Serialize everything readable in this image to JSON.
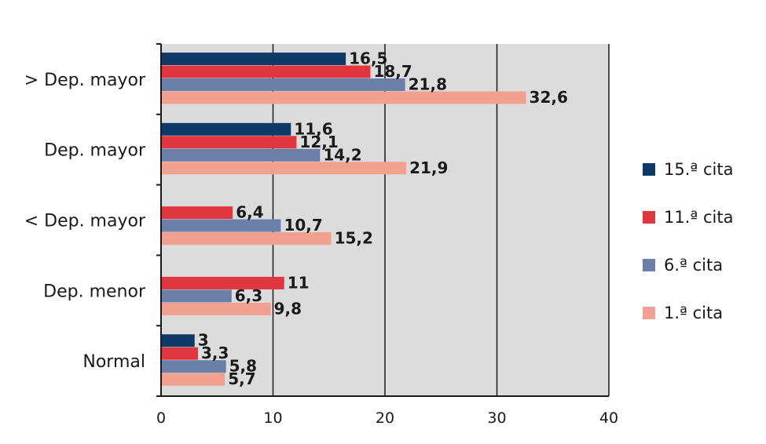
{
  "chart_data": {
    "type": "bar",
    "orientation": "horizontal",
    "categories": [
      "> Dep. mayor",
      "Dep. mayor",
      "< Dep. mayor",
      "Dep. menor",
      "Normal"
    ],
    "series": [
      {
        "name": "15.ª cita",
        "color": "#0d3a66",
        "values": [
          16.5,
          11.6,
          null,
          null,
          3
        ],
        "labels": [
          "16,5",
          "11,6",
          "",
          "",
          "3"
        ]
      },
      {
        "name": "11.ª cita",
        "color": "#e0363f",
        "values": [
          18.7,
          12.1,
          6.4,
          11,
          3.3
        ],
        "labels": [
          "18,7",
          "12,1",
          "6,4",
          "11",
          "3,3"
        ]
      },
      {
        "name": "6.ª cita",
        "color": "#6b7fa8",
        "values": [
          21.8,
          14.2,
          10.7,
          6.3,
          5.8
        ],
        "labels": [
          "21,8",
          "14,2",
          "10,7",
          "6,3",
          "5,8"
        ]
      },
      {
        "name": "1.ª cita",
        "color": "#f2a090",
        "values": [
          32.6,
          21.9,
          15.2,
          9.8,
          5.7
        ],
        "labels": [
          "32,6",
          "21,9",
          "15,2",
          "9,8",
          "5,7"
        ]
      }
    ],
    "xlim": [
      0,
      40
    ],
    "xticks": [
      "0",
      "10",
      "20",
      "30",
      "40"
    ],
    "grid": true,
    "legend_position": "right",
    "plot_background": "#dcdcdc"
  }
}
